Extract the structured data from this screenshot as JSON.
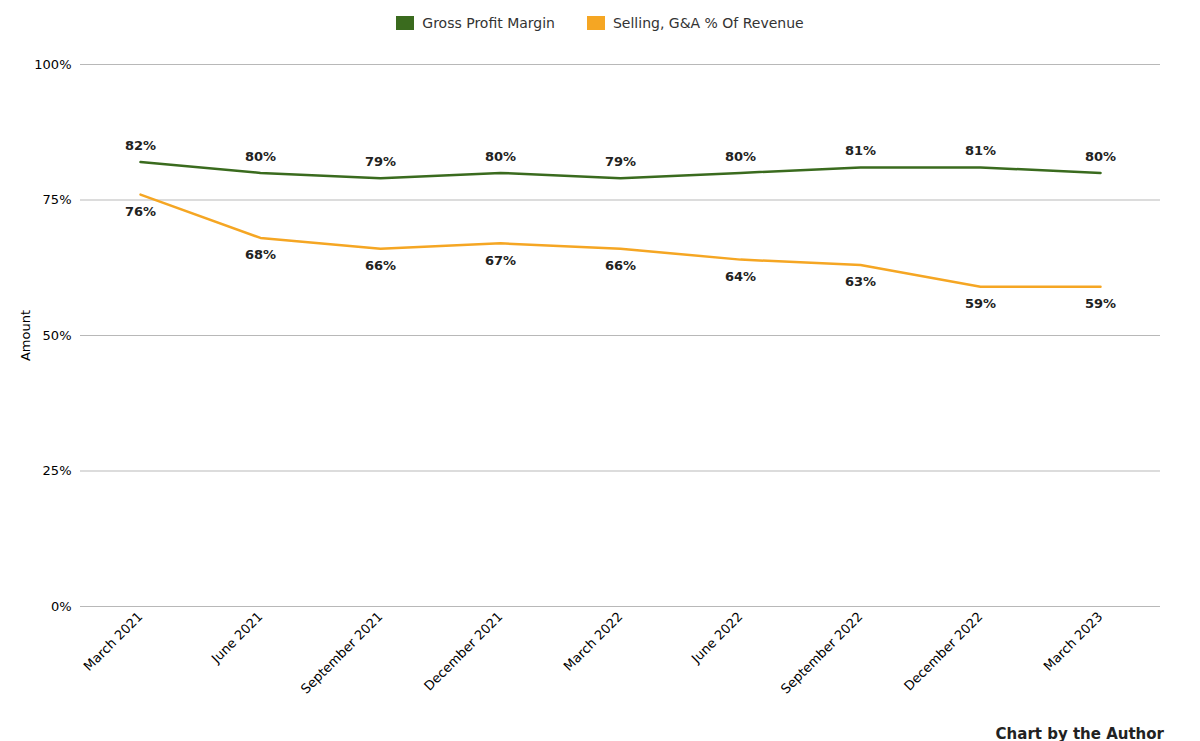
{
  "chart_data": {
    "type": "line",
    "categories": [
      "March 2021",
      "June 2021",
      "September 2021",
      "December 2021",
      "March 2022",
      "June 2022",
      "September 2022",
      "December 2022",
      "March 2023"
    ],
    "series": [
      {
        "name": "Gross Profit Margin",
        "color": "#3a6b1e",
        "values": [
          0.82,
          0.8,
          0.79,
          0.8,
          0.79,
          0.8,
          0.81,
          0.81,
          0.8
        ],
        "value_labels": [
          "82%",
          "80%",
          "79%",
          "80%",
          "79%",
          "80%",
          "81%",
          "81%",
          "80%"
        ]
      },
      {
        "name": "Selling, G&A % Of Revenue",
        "color": "#f5a623",
        "values": [
          0.76,
          0.68,
          0.66,
          0.67,
          0.66,
          0.64,
          0.63,
          0.59,
          0.59
        ],
        "value_labels": [
          "76%",
          "68%",
          "66%",
          "67%",
          "66%",
          "64%",
          "63%",
          "59%",
          "59%"
        ]
      }
    ],
    "y_label": "Amount",
    "ylim": [
      0,
      1.0
    ],
    "yticks": [
      {
        "value": 0.0,
        "label": "0%"
      },
      {
        "value": 0.25,
        "label": "25%"
      },
      {
        "value": 0.5,
        "label": "50%"
      },
      {
        "value": 0.75,
        "label": "75%"
      },
      {
        "value": 1.0,
        "label": "100%"
      }
    ],
    "grid": true,
    "legend": "top",
    "data_labels": true,
    "caption": "Chart by the Author"
  }
}
